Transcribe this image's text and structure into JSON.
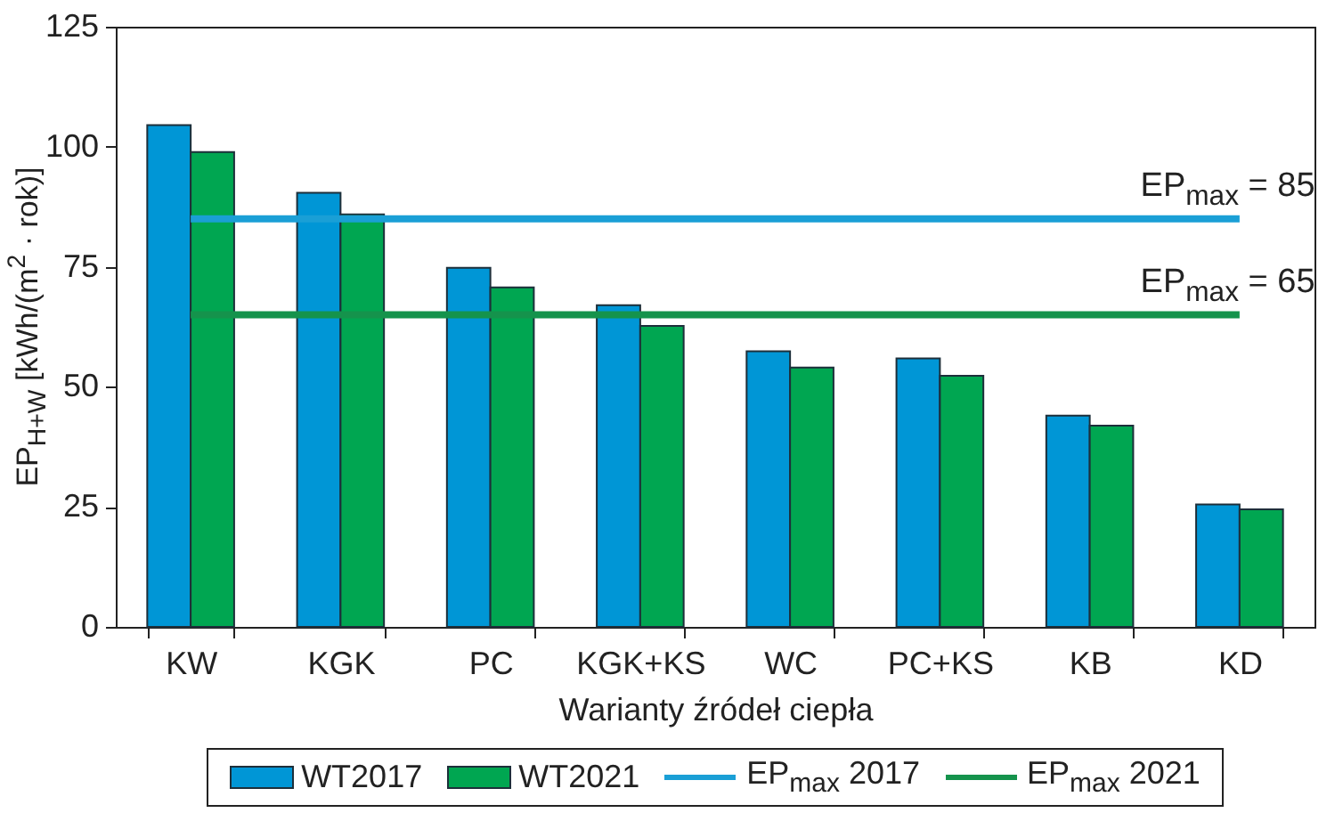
{
  "chart_data": {
    "type": "bar",
    "xlabel": "Warianty źródeł ciepła",
    "ylabel": "EP$_{H+W}$ [kWh/(m$^{2}$ · rok)]",
    "categories": [
      "KW",
      "KGK",
      "PC",
      "KGK+KS",
      "WC",
      "PC+KS",
      "KB",
      "KD"
    ],
    "series": [
      {
        "name": "WT2017",
        "color": "#0096d6",
        "values": [
          104.5,
          90.4,
          74.8,
          67.0,
          57.4,
          55.9,
          44.0,
          25.5
        ]
      },
      {
        "name": "WT2021",
        "color": "#00a651",
        "values": [
          98.9,
          85.9,
          70.7,
          62.7,
          54.0,
          52.3,
          41.9,
          24.5
        ]
      },
      {
        "name": "EP$_{max}$ 2017",
        "type": "line",
        "color": "#1a9fd6",
        "values": [
          85,
          85,
          85,
          85,
          85,
          85,
          85,
          85
        ]
      },
      {
        "name": "EP$_{max}$ 2021",
        "type": "line",
        "color": "#15934c",
        "values": [
          65,
          65,
          65,
          65,
          65,
          65,
          65,
          65
        ]
      }
    ],
    "annotations": [
      {
        "text": "EP$_{max}$ = 85",
        "x": "KD",
        "y": 85
      },
      {
        "text": "EP$_{max}$ = 65",
        "x": "KD",
        "y": 65
      }
    ],
    "ylim": [
      0,
      125
    ],
    "yticks": [
      0,
      25,
      50,
      75,
      100,
      125
    ],
    "grid": false,
    "legend": "bottom"
  }
}
